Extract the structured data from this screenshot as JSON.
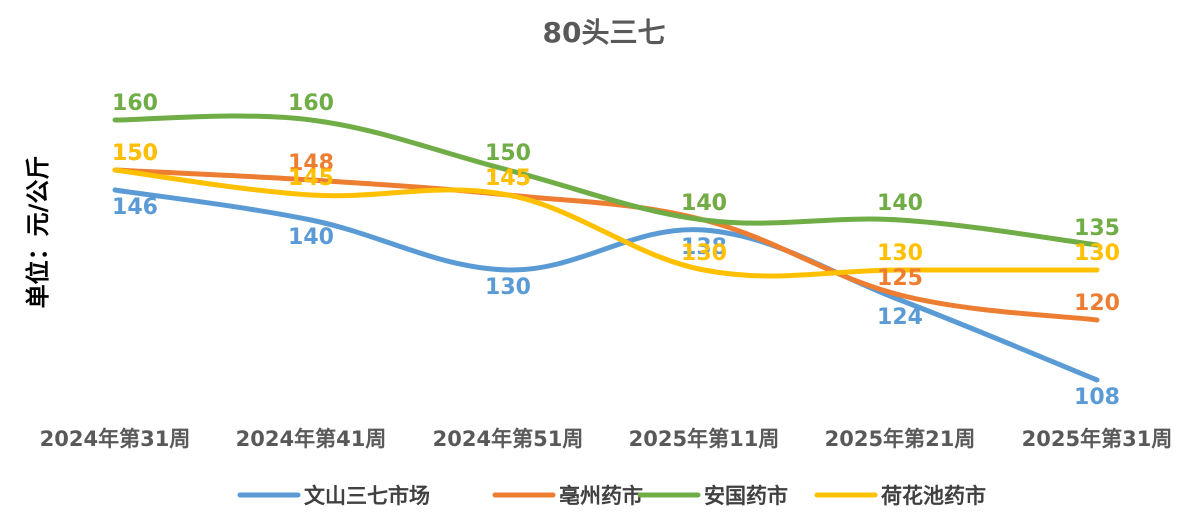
{
  "chart_data": {
    "type": "line",
    "title": "80头三七",
    "ylabel": "单位：元/公斤",
    "xlabel": "",
    "categories": [
      "2024年第31周",
      "2024年第41周",
      "2024年第51周",
      "2025年第11周",
      "2025年第21周",
      "2025年第31周"
    ],
    "ylim": [
      100,
      170
    ],
    "smooth": true,
    "grid": false,
    "legend": "bottom",
    "series": [
      {
        "name": "文山三七市场",
        "color": "#5B9BD5",
        "values": [
          146,
          140,
          130,
          138,
          124,
          108
        ]
      },
      {
        "name": "亳州药市",
        "color": "#ED7D31",
        "values": [
          150,
          148,
          145,
          140,
          125,
          120
        ]
      },
      {
        "name": "安国药市",
        "color": "#70AD47",
        "values": [
          160,
          160,
          150,
          140,
          140,
          135
        ]
      },
      {
        "name": "荷花池药市",
        "color": "#FFC000",
        "values": [
          150,
          145,
          145,
          130,
          130,
          130
        ]
      }
    ]
  }
}
